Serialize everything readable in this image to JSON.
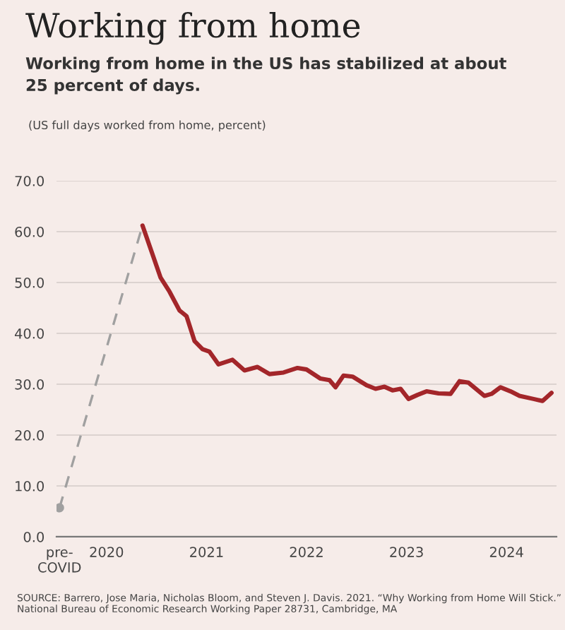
{
  "chart_data": {
    "type": "line",
    "title": "Working from home",
    "subtitle": "Working from home in the US has stabilized at about\n25 percent of days.",
    "ylabel": "(US full days worked from home, percent)",
    "annotations": [
      "SOURCE: Barrero, Jose Maria, Nicholas Bloom, and Steven J. Davis. 2021. “Why Working from Home Will Stick.” National Bureau of Economic Research Working Paper 28731, Cambridge, MA"
    ],
    "xlim": [
      2019.5,
      2024.5
    ],
    "xticks": [
      {
        "value": 2019.53,
        "label": "pre-\nCOVID"
      },
      2020,
      2021,
      2022,
      2023,
      2024
    ],
    "ylim": [
      0,
      70
    ],
    "yticks": [
      {
        "value": 0,
        "label": "0.0"
      },
      {
        "value": 10,
        "label": "10.0"
      },
      {
        "value": 20,
        "label": "20.0"
      },
      {
        "value": 30,
        "label": "30.0"
      },
      {
        "value": 40,
        "label": "40.0"
      },
      {
        "value": 50,
        "label": "50.0"
      },
      {
        "value": 60,
        "label": "60.0"
      },
      {
        "value": 70,
        "label": "70.0"
      }
    ],
    "grid": "y",
    "series": [
      {
        "type": "line",
        "line_style": "dashed",
        "color": "#a0a0a0",
        "x": [
          2019.53,
          2020.36
        ],
        "values": [
          5.7,
          61.2
        ]
      },
      {
        "type": "scatter",
        "color": "#a0a0a0",
        "x": [
          2019.53
        ],
        "values": [
          5.7
        ]
      },
      {
        "line_style": "solid",
        "color": "#a3262a",
        "x": [
          2020.36,
          2020.45,
          2020.54,
          2020.63,
          2020.73,
          2020.8,
          2020.88,
          2020.96,
          2021.03,
          2021.12,
          2021.26,
          2021.38,
          2021.51,
          2021.63,
          2021.77,
          2021.91,
          2022.0,
          2022.14,
          2022.23,
          2022.29,
          2022.37,
          2022.46,
          2022.6,
          2022.69,
          2022.78,
          2022.86,
          2022.94,
          2023.02,
          2023.11,
          2023.2,
          2023.32,
          2023.44,
          2023.53,
          2023.62,
          2023.78,
          2023.85,
          2023.94,
          2024.04,
          2024.13,
          2024.27,
          2024.36,
          2024.45
        ],
        "values": [
          61.2,
          56.1,
          51.0,
          48.2,
          44.5,
          43.4,
          38.5,
          36.9,
          36.4,
          33.9,
          34.8,
          32.7,
          33.4,
          32.0,
          32.3,
          33.2,
          32.9,
          31.1,
          30.8,
          29.4,
          31.7,
          31.5,
          29.8,
          29.1,
          29.5,
          28.8,
          29.1,
          27.1,
          27.9,
          28.6,
          28.2,
          28.1,
          30.6,
          30.3,
          27.7,
          28.1,
          29.4,
          28.6,
          27.7,
          27.1,
          26.7,
          28.3
        ]
      }
    ]
  }
}
